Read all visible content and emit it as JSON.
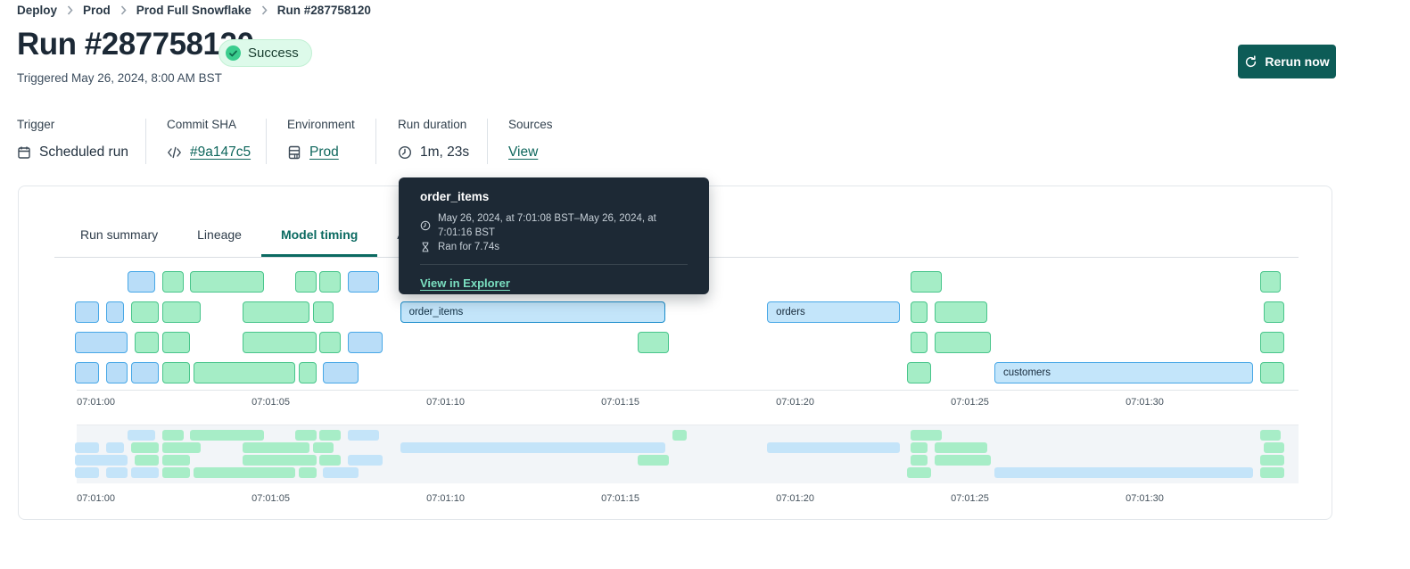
{
  "header": {
    "breadcrumb": [
      "Deploy",
      "Prod",
      "Prod Full Snowflake",
      "Run #287758120"
    ],
    "title": "Run #287758120",
    "status": "Success",
    "triggered": "Triggered May 26, 2024, 8:00 AM BST",
    "rerun_label": "Rerun now"
  },
  "info": {
    "trigger": {
      "label": "Trigger",
      "value": "Scheduled run"
    },
    "commit": {
      "label": "Commit SHA",
      "value": "#9a147c5"
    },
    "environment": {
      "label": "Environment",
      "value": "Prod"
    },
    "duration": {
      "label": "Run duration",
      "value": "1m, 23s"
    },
    "sources": {
      "label": "Sources",
      "value": "View"
    }
  },
  "tabs": {
    "run_summary": "Run summary",
    "lineage": "Lineage",
    "model_timing": "Model timing",
    "artifacts": "Artifacts",
    "active": "Model timing"
  },
  "tooltip": {
    "title": "order_items",
    "time_range": "May 26, 2024, at 7:01:08 BST–May 26, 2024, at 7:01:16 BST",
    "duration": "Ran for 7.74s",
    "link": "View in Explorer"
  },
  "colors": {
    "button_teal": "#0d5c57",
    "link_teal": "#0e665c",
    "tab_active_teal": "#0b6a61",
    "success_bg": "#ddfaea",
    "success_dot": "#3bcd8e",
    "bar_blue_fill": "#b9ddf8",
    "bar_blue_border": "#47a7e6",
    "bar_green_fill": "#a5edc6",
    "bar_green_border": "#48c58b",
    "bar_selected_fill": "#31ade5",
    "bar_selected_border": "#1b8dcb",
    "tooltip_bg": "#1d2935",
    "tooltip_link": "#7be0c1"
  },
  "chart_data": {
    "type": "gantt",
    "title": "Model timing",
    "x_axis": {
      "ticks": [
        "07:01:00",
        "07:01:05",
        "07:01:10",
        "07:01:15",
        "07:01:20",
        "07:01:25",
        "07:01:30"
      ],
      "tick_seconds": [
        60,
        65,
        70,
        75,
        80,
        85,
        90
      ],
      "domain_seconds": [
        59.45,
        94.4
      ],
      "unit": "time of day (seconds after 07:00:00 BST)"
    },
    "legend": null,
    "rows": [
      {
        "bars": [
          {
            "start": 60.9,
            "end": 61.7,
            "color": "blue"
          },
          {
            "start": 61.9,
            "end": 62.5,
            "color": "green"
          },
          {
            "start": 62.7,
            "end": 64.8,
            "color": "green"
          },
          {
            "start": 65.7,
            "end": 66.3,
            "color": "green"
          },
          {
            "start": 66.4,
            "end": 67.0,
            "color": "green"
          },
          {
            "start": 67.2,
            "end": 68.1,
            "color": "blue"
          },
          {
            "start": 76.5,
            "end": 76.9,
            "color": "green"
          },
          {
            "start": 83.3,
            "end": 84.2,
            "color": "green"
          },
          {
            "start": 93.3,
            "end": 93.9,
            "color": "green"
          }
        ]
      },
      {
        "bars": [
          {
            "start": 59.4,
            "end": 60.1,
            "color": "blue"
          },
          {
            "start": 60.3,
            "end": 60.8,
            "color": "blue"
          },
          {
            "start": 61.0,
            "end": 61.8,
            "color": "green"
          },
          {
            "start": 61.9,
            "end": 63.0,
            "color": "green"
          },
          {
            "start": 64.2,
            "end": 66.1,
            "color": "green"
          },
          {
            "start": 66.2,
            "end": 66.8,
            "color": "green"
          },
          {
            "start": 68.7,
            "end": 76.3,
            "color": "blue",
            "label": "order_items",
            "selected": true
          },
          {
            "start": 79.2,
            "end": 83.0,
            "color": "blue",
            "label": "orders"
          },
          {
            "start": 83.3,
            "end": 83.8,
            "color": "green"
          },
          {
            "start": 84.0,
            "end": 85.5,
            "color": "green"
          },
          {
            "start": 93.4,
            "end": 94.0,
            "color": "green"
          }
        ]
      },
      {
        "bars": [
          {
            "start": 59.4,
            "end": 60.9,
            "color": "blue"
          },
          {
            "start": 61.1,
            "end": 61.8,
            "color": "green"
          },
          {
            "start": 61.9,
            "end": 62.7,
            "color": "green"
          },
          {
            "start": 64.2,
            "end": 66.3,
            "color": "green"
          },
          {
            "start": 66.4,
            "end": 67.0,
            "color": "green"
          },
          {
            "start": 67.2,
            "end": 68.2,
            "color": "blue"
          },
          {
            "start": 75.5,
            "end": 76.4,
            "color": "green"
          },
          {
            "start": 83.3,
            "end": 83.8,
            "color": "green"
          },
          {
            "start": 84.0,
            "end": 85.6,
            "color": "green"
          },
          {
            "start": 93.3,
            "end": 94.0,
            "color": "green"
          }
        ]
      },
      {
        "bars": [
          {
            "start": 59.4,
            "end": 60.1,
            "color": "blue"
          },
          {
            "start": 60.3,
            "end": 60.9,
            "color": "blue"
          },
          {
            "start": 61.0,
            "end": 61.8,
            "color": "blue"
          },
          {
            "start": 61.9,
            "end": 62.7,
            "color": "green"
          },
          {
            "start": 62.8,
            "end": 65.7,
            "color": "green"
          },
          {
            "start": 65.8,
            "end": 66.3,
            "color": "green"
          },
          {
            "start": 66.5,
            "end": 67.5,
            "color": "blue"
          },
          {
            "start": 83.2,
            "end": 83.9,
            "color": "green"
          },
          {
            "start": 85.7,
            "end": 93.1,
            "color": "blue",
            "label": "customers"
          },
          {
            "start": 93.3,
            "end": 94.0,
            "color": "green"
          }
        ]
      }
    ]
  }
}
